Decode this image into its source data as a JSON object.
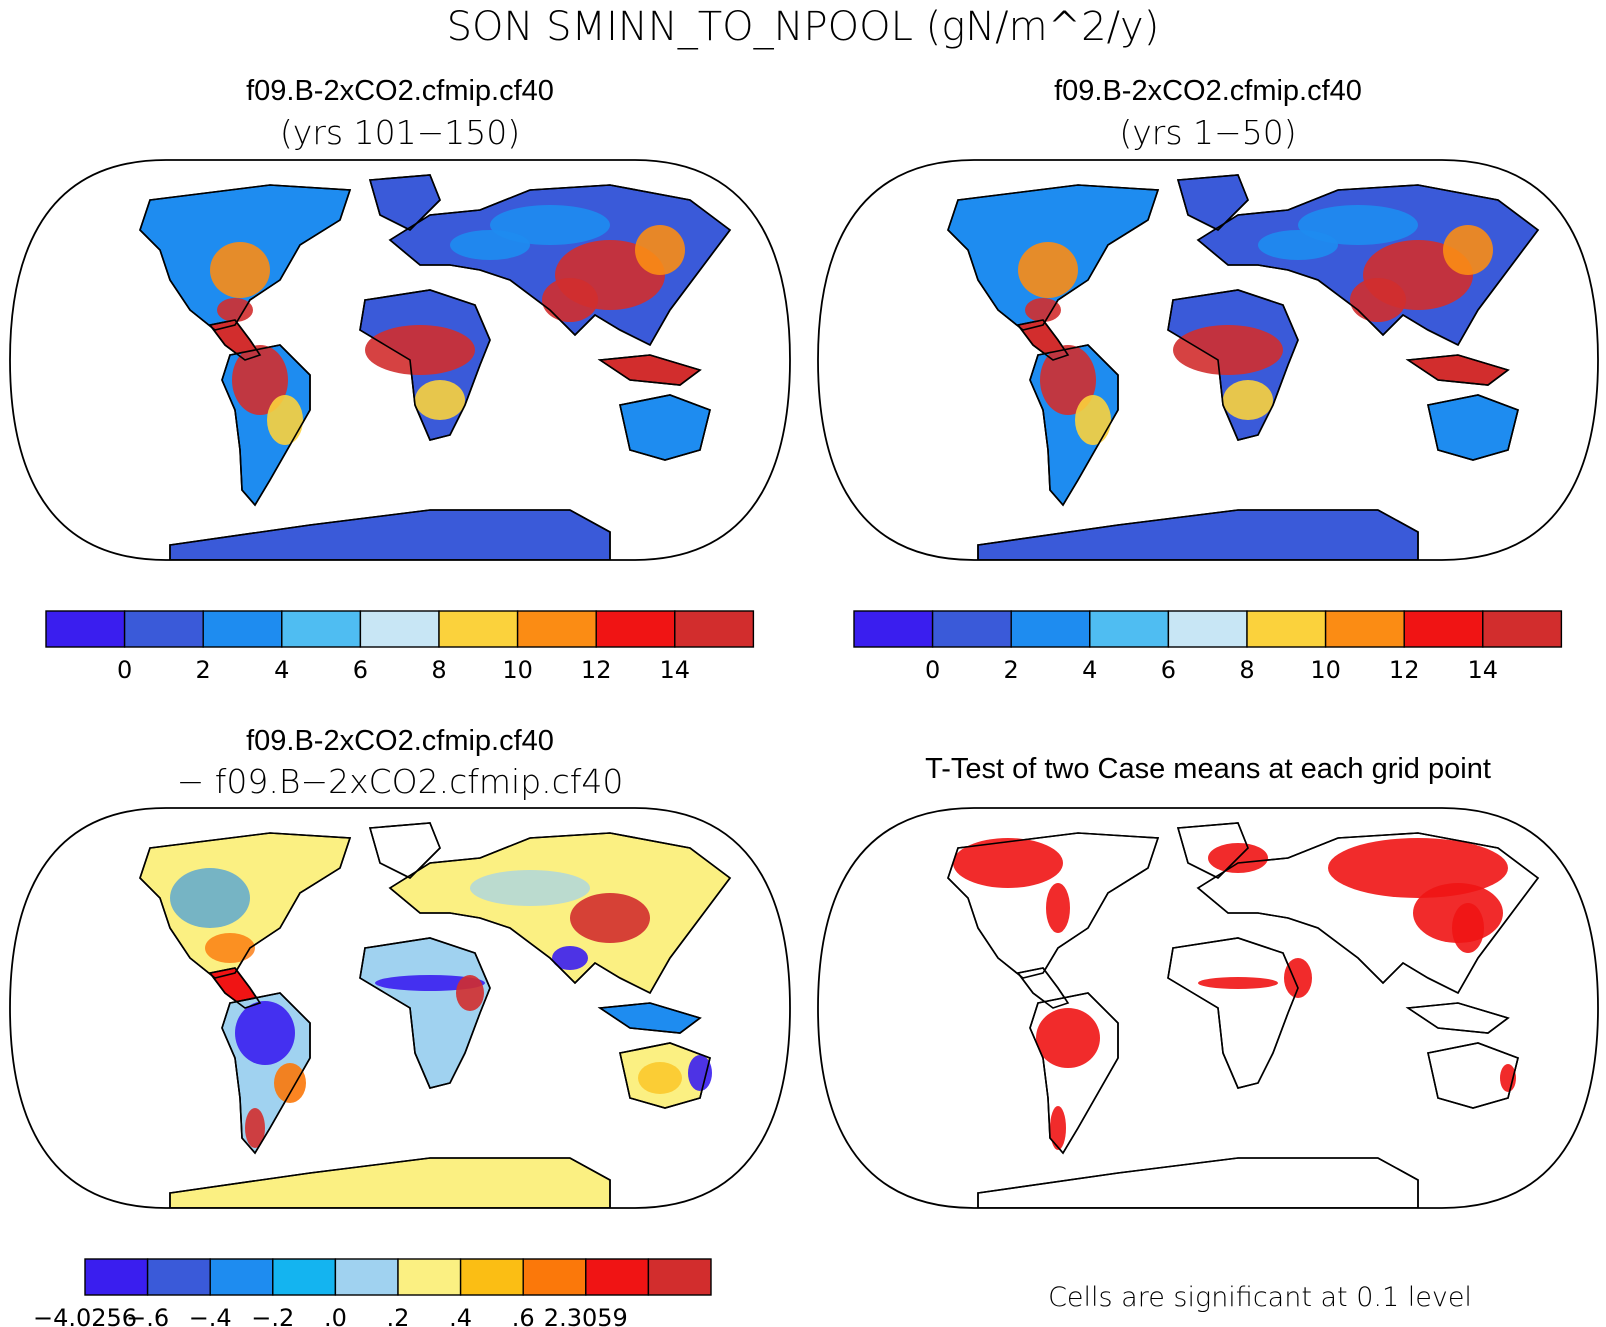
{
  "main_title": "SON SMINN_TO_NPOOL (gN/m^2/y)",
  "panels": {
    "top_left": {
      "title": "f09.B-2xCO2.cfmip.cf40",
      "subtitle": "(yrs 101−150)",
      "colorbar": {
        "colors": [
          "#3a1eef",
          "#3a5ad9",
          "#1e8cf0",
          "#4fbdf2",
          "#c8e6f5",
          "#fbd23c",
          "#fb8c14",
          "#f01414",
          "#d22d2d"
        ],
        "ticks": [
          "0",
          "2",
          "4",
          "6",
          "8",
          "10",
          "12",
          "14"
        ]
      }
    },
    "top_right": {
      "title": "f09.B-2xCO2.cfmip.cf40",
      "subtitle": "(yrs 1−50)",
      "colorbar": {
        "colors": [
          "#3a1eef",
          "#3a5ad9",
          "#1e8cf0",
          "#4fbdf2",
          "#c8e6f5",
          "#fbd23c",
          "#fb8c14",
          "#f01414",
          "#d22d2d"
        ],
        "ticks": [
          "0",
          "2",
          "4",
          "6",
          "8",
          "10",
          "12",
          "14"
        ]
      }
    },
    "bottom_left": {
      "title": "f09.B-2xCO2.cfmip.cf40",
      "subtitle": "− f09.B−2xCO2.cfmip.cf40",
      "colorbar": {
        "colors": [
          "#3a1eef",
          "#3a5ad9",
          "#1e8cf0",
          "#14b4f0",
          "#a0d2f0",
          "#fbf082",
          "#fbbe14",
          "#fb780a",
          "#f01414",
          "#d22d2d"
        ],
        "ticks": [
          "−4.0256",
          "−.6",
          "−.4",
          "−.2",
          ".0",
          ".2",
          ".4",
          ".6",
          "2.3059"
        ]
      }
    },
    "bottom_right": {
      "title": "T-Test of two Case means at each grid point",
      "footnote": "Cells are significant at 0.1 level"
    }
  },
  "colors": {
    "land_low": "#3a5ad9",
    "land_mid": "#1e8cf0",
    "land_high": "#d22d2d",
    "diff_base": "#fbf082",
    "signif": "#f01414"
  }
}
